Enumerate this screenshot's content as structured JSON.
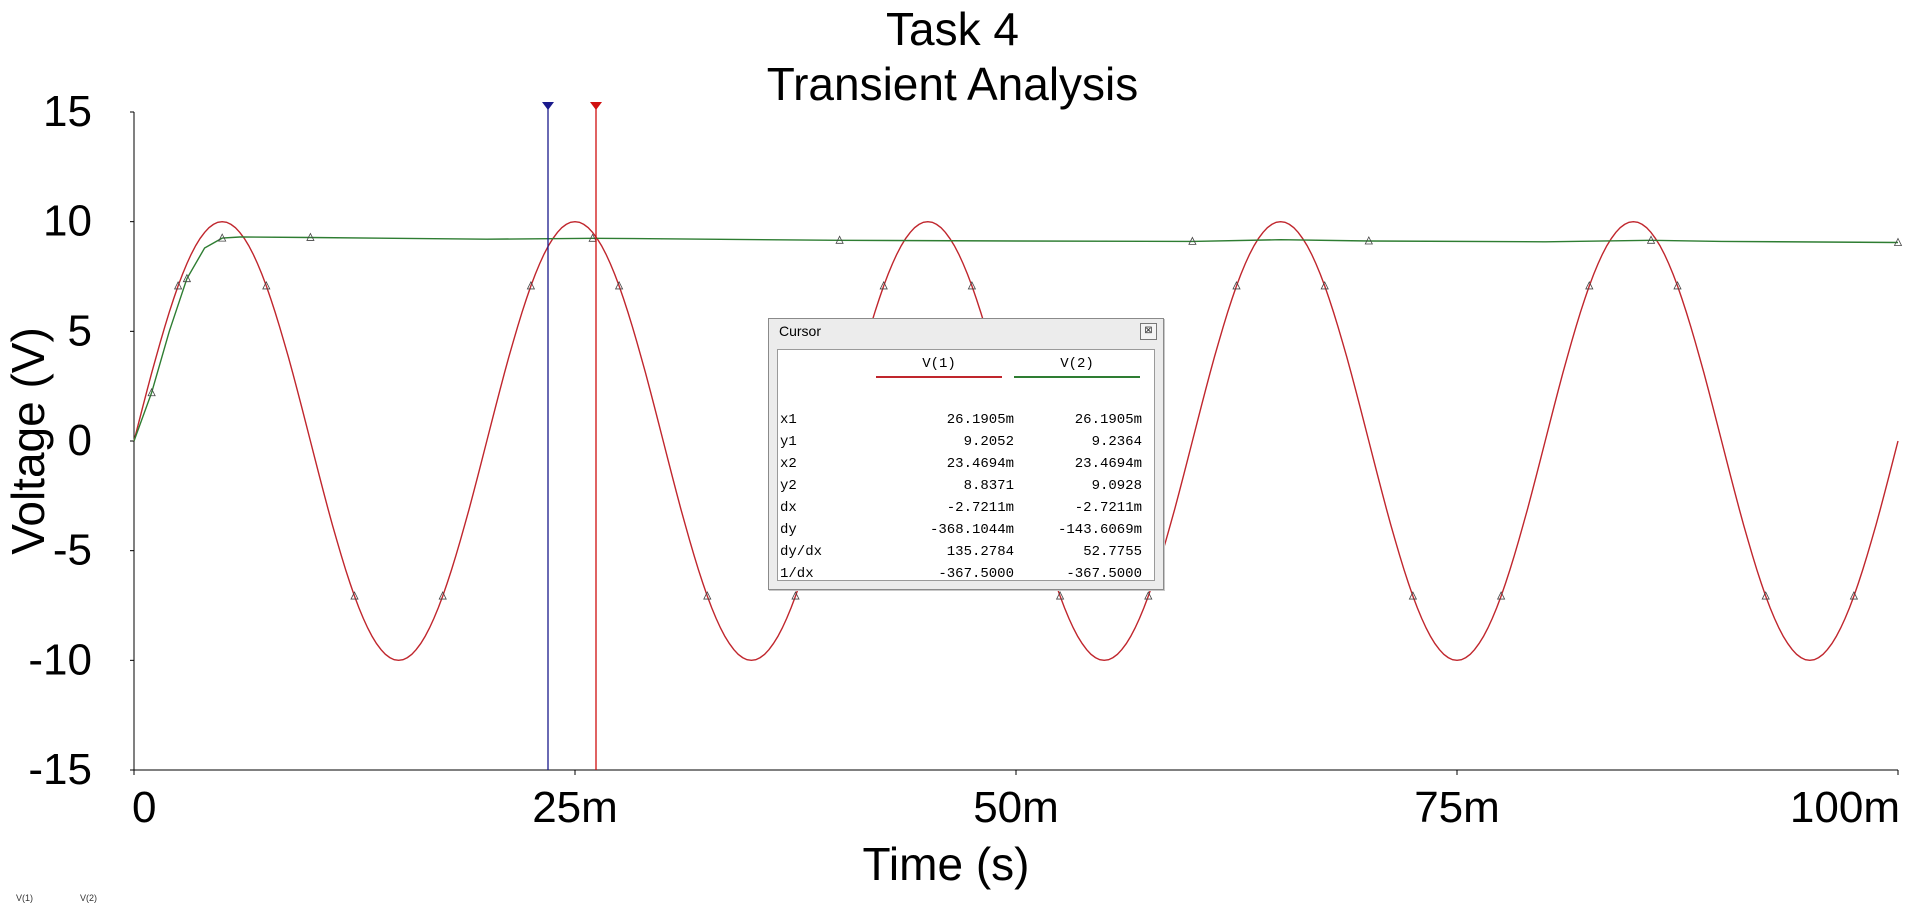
{
  "title_line1": "Task 4",
  "title_line2": "Transient Analysis",
  "chart_data": {
    "type": "line",
    "xlabel": "Time (s)",
    "ylabel": "Voltage (V)",
    "xlim": [
      0,
      0.1
    ],
    "ylim": [
      -15,
      15
    ],
    "xticks": [
      0,
      0.025,
      0.05,
      0.075,
      0.1
    ],
    "xtick_labels": [
      "0",
      "25m",
      "50m",
      "75m",
      "100m"
    ],
    "yticks": [
      15,
      10,
      5,
      0,
      -5,
      -10,
      -15
    ],
    "ytick_labels": [
      "15",
      "10",
      "5",
      "0",
      "-5",
      "-10",
      "-15"
    ],
    "grid": false,
    "series": [
      {
        "name": "V(1)",
        "color": "#c0262d",
        "description_values": "sine wave, amplitude 10 V, period 20 ms",
        "x": [
          0,
          0.0025,
          0.005,
          0.0075,
          0.01,
          0.0125,
          0.015,
          0.0175,
          0.02,
          0.0225,
          0.025,
          0.0275,
          0.03,
          0.0325,
          0.035,
          0.0375,
          0.04,
          0.0425,
          0.045,
          0.0475,
          0.05,
          0.0525,
          0.055,
          0.0575,
          0.06,
          0.0625,
          0.065,
          0.0675,
          0.07,
          0.0725,
          0.075,
          0.0775,
          0.08,
          0.0825,
          0.085,
          0.0875,
          0.09,
          0.0925,
          0.095,
          0.0975,
          0.1
        ],
        "y": [
          0,
          7.07,
          10,
          7.07,
          0,
          -7.07,
          -10,
          -7.07,
          0,
          7.07,
          10,
          7.07,
          0,
          -7.07,
          -10,
          -7.07,
          0,
          7.07,
          10,
          7.07,
          0,
          -7.07,
          -10,
          -7.07,
          0,
          7.07,
          10,
          7.07,
          0,
          -7.07,
          -10,
          -7.07,
          0,
          7.07,
          10,
          7.07,
          0,
          -7.07,
          -10,
          -7.07,
          0
        ]
      },
      {
        "name": "V(2)",
        "color": "#2e7d32",
        "x": [
          0,
          0.001,
          0.002,
          0.003,
          0.004,
          0.005,
          0.006,
          0.01,
          0.02,
          0.026,
          0.03,
          0.04,
          0.05,
          0.06,
          0.065,
          0.07,
          0.08,
          0.086,
          0.09,
          0.1
        ],
        "y": [
          0,
          2.2,
          5.0,
          7.4,
          8.8,
          9.25,
          9.3,
          9.28,
          9.2,
          9.24,
          9.22,
          9.15,
          9.12,
          9.1,
          9.18,
          9.12,
          9.08,
          9.15,
          9.1,
          9.05
        ]
      }
    ],
    "cursors": [
      {
        "name": "cursor-2",
        "x": 0.0234694,
        "color": "#1a1a8c"
      },
      {
        "name": "cursor-1",
        "x": 0.0261905,
        "color": "#d01010"
      }
    ]
  },
  "cursor_window": {
    "title": "Cursor",
    "close_glyph": "⊠",
    "col1": "V(1)",
    "col2": "V(2)",
    "col1_color": "#c0262d",
    "col2_color": "#2e7d32",
    "rows": [
      {
        "label": "x1",
        "v1": "26.1905m",
        "v2": "26.1905m"
      },
      {
        "label": "y1",
        "v1": "9.2052",
        "v2": "9.2364"
      },
      {
        "label": "x2",
        "v1": "23.4694m",
        "v2": "23.4694m"
      },
      {
        "label": "y2",
        "v1": "8.8371",
        "v2": "9.0928"
      },
      {
        "label": "dx",
        "v1": "-2.7211m",
        "v2": "-2.7211m"
      },
      {
        "label": "dy",
        "v1": "-368.1044m",
        "v2": "-143.6069m"
      },
      {
        "label": "dy/dx",
        "v1": "135.2784",
        "v2": "52.7755"
      },
      {
        "label": "1/dx",
        "v1": "-367.5000",
        "v2": "-367.5000"
      }
    ]
  },
  "legend": [
    "V(1)",
    "V(2)"
  ]
}
